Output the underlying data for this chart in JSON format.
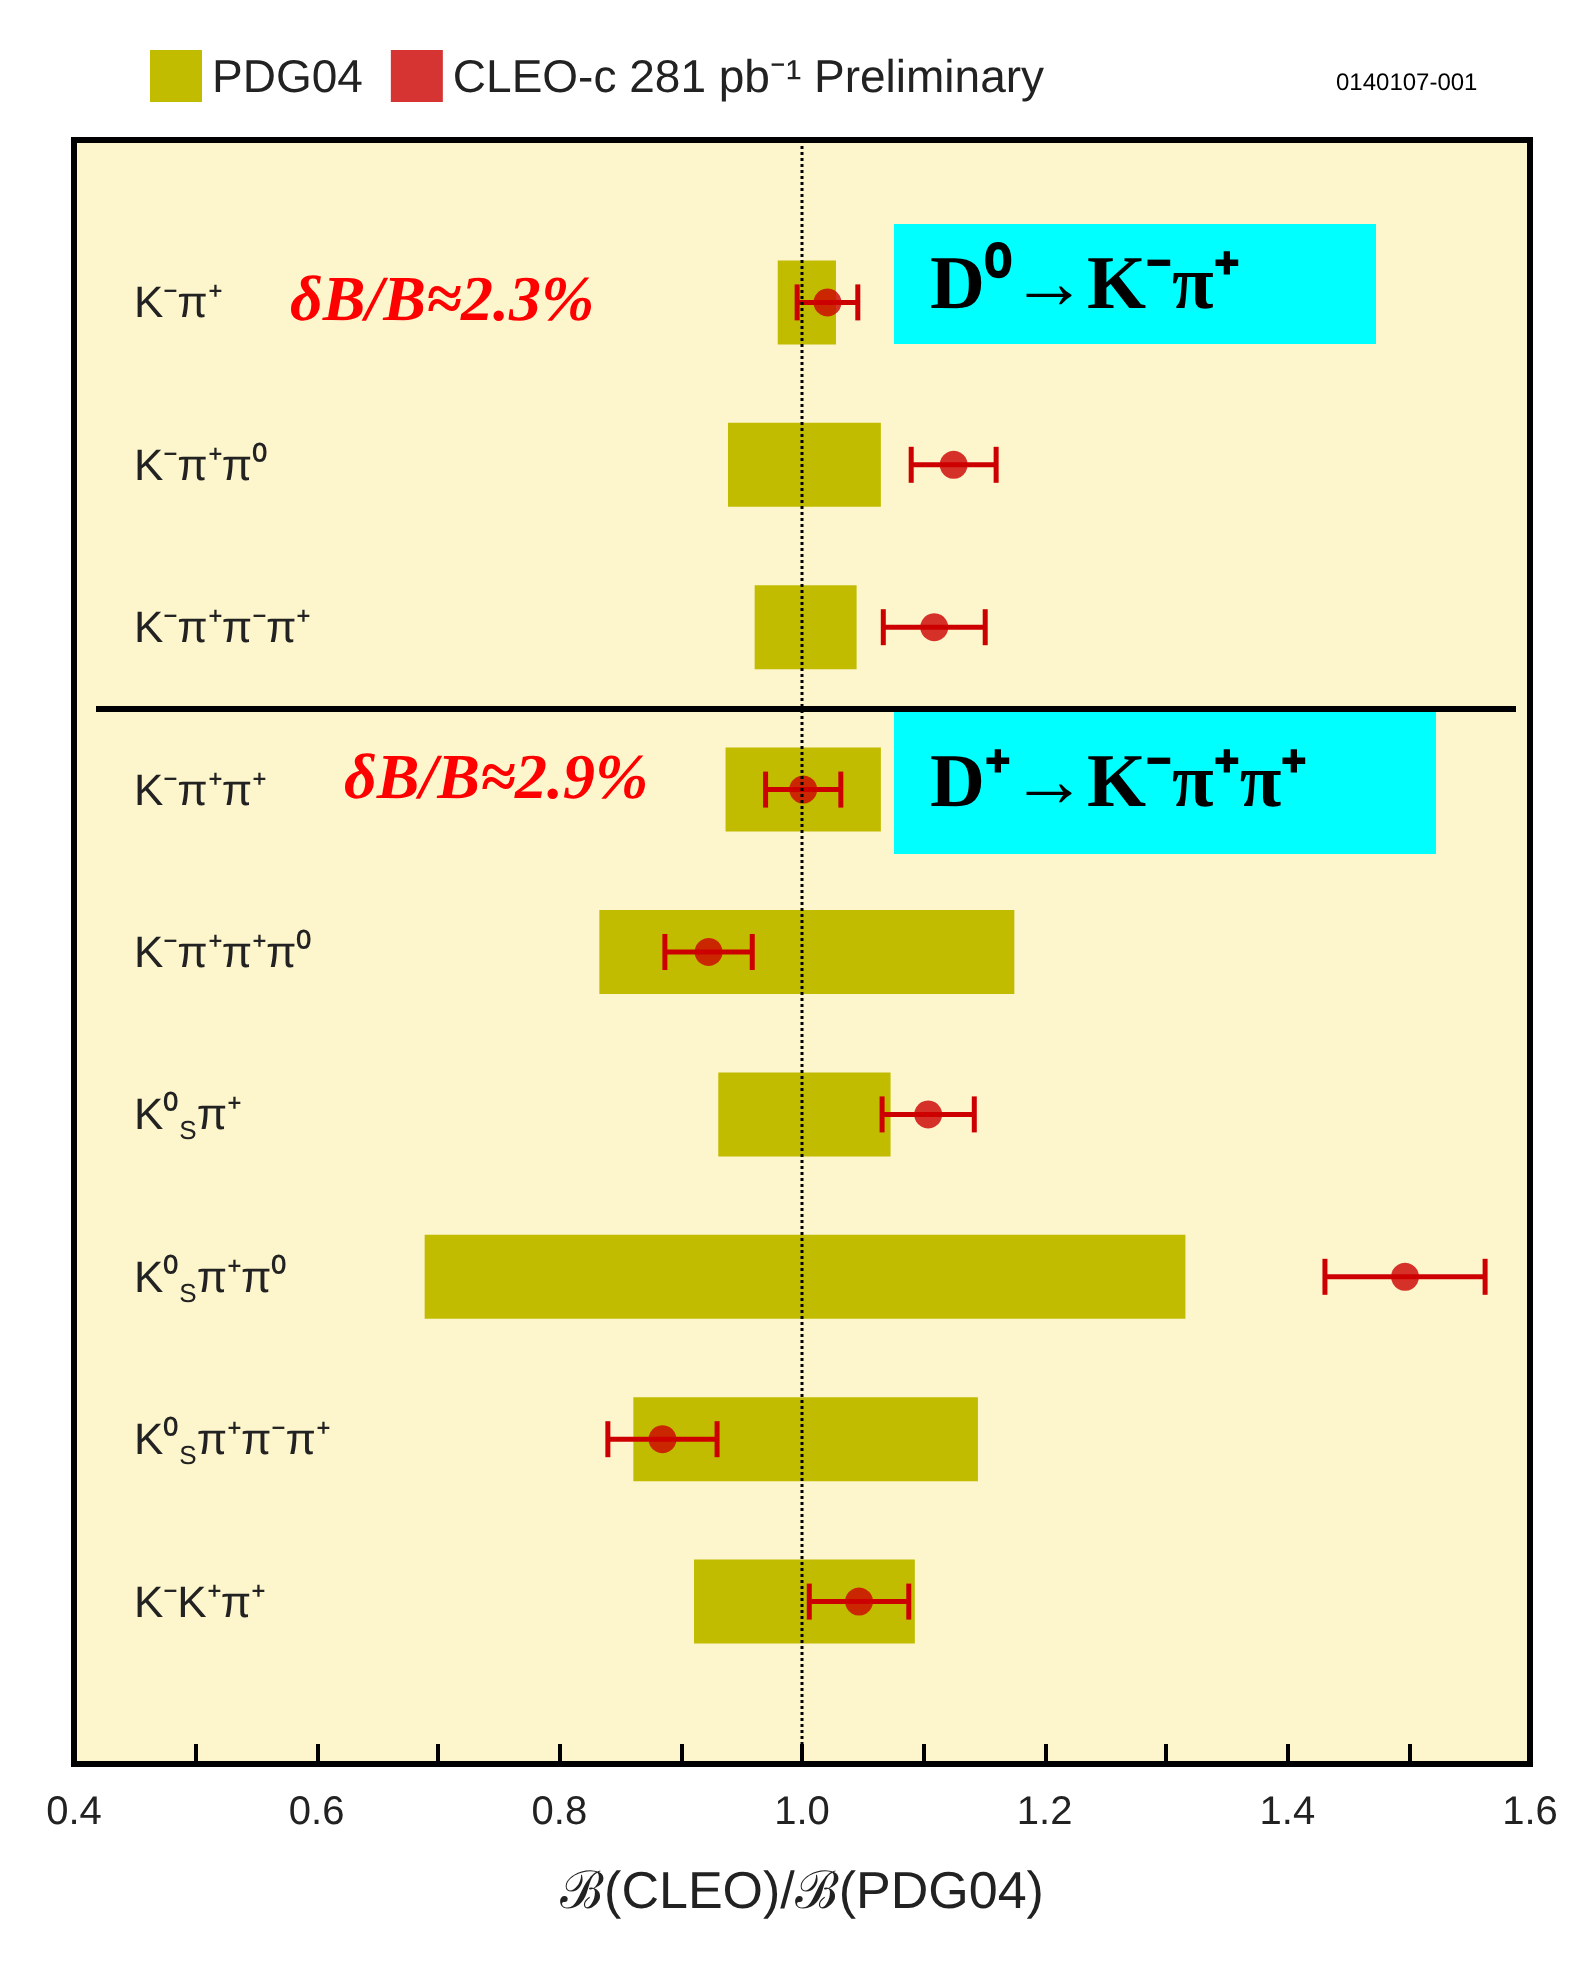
{
  "chart_data": {
    "type": "bar",
    "orientation": "horizontal",
    "xlabel": "ℬ(CLEO)/ℬ(PDG04)",
    "categories": [
      "K⁻π⁺",
      "K⁻π⁺π⁰",
      "K⁻π⁺π⁻π⁺",
      "K⁻π⁺π⁺",
      "K⁻π⁺π⁺π⁰",
      "K⁰$_{S}$π⁺",
      "K⁰$_{S}$π⁺π⁰",
      "K⁰$_{S}$π⁺π⁻π⁺",
      "K⁻K⁺π⁺"
    ],
    "series": [
      {
        "name": "PDG04",
        "type": "bar",
        "color": "#c2bc00",
        "base": [
          0.98,
          0.939,
          0.961,
          0.937,
          0.833,
          0.931,
          0.689,
          0.861,
          0.911
        ],
        "values": [
          0.048,
          0.126,
          0.084,
          0.128,
          0.342,
          0.142,
          0.627,
          0.284,
          0.182
        ]
      },
      {
        "name": "CLEO-c 281 pb⁻¹ Preliminary",
        "type": "scatter",
        "color": "#cc0000",
        "marker": "circle",
        "values": [
          1.021,
          1.125,
          1.109,
          1.001,
          0.923,
          1.104,
          1.497,
          0.885,
          1.047
        ],
        "errors": [
          0.025,
          0.035,
          0.042,
          0.031,
          0.036,
          0.038,
          0.066,
          0.045,
          0.041
        ]
      }
    ],
    "xlim": [
      0.4,
      1.6
    ],
    "xticks": [
      0.4,
      {
        "value": 0.5,
        "label": null
      },
      0.6,
      {
        "value": 0.7,
        "label": null
      },
      0.8,
      {
        "value": 0.9,
        "label": null
      },
      {
        "value": 1,
        "label": "1.0"
      },
      {
        "value": 1.1,
        "label": null
      },
      1.2,
      {
        "value": 1.3,
        "label": null
      },
      1.4,
      {
        "value": 1.5,
        "label": null
      },
      1.6
    ],
    "ref_lines": [
      {
        "axis": "x",
        "value": 1,
        "color": "#000000",
        "line_style": "dotted"
      }
    ],
    "annotations": [
      "δB/B≈2.3%",
      "D⁰→K⁻π⁺",
      "δB/B≈2.9%",
      "D⁺→K⁻π⁺π⁺",
      "0140107-001"
    ],
    "legend": "top left",
    "grid": false
  }
}
